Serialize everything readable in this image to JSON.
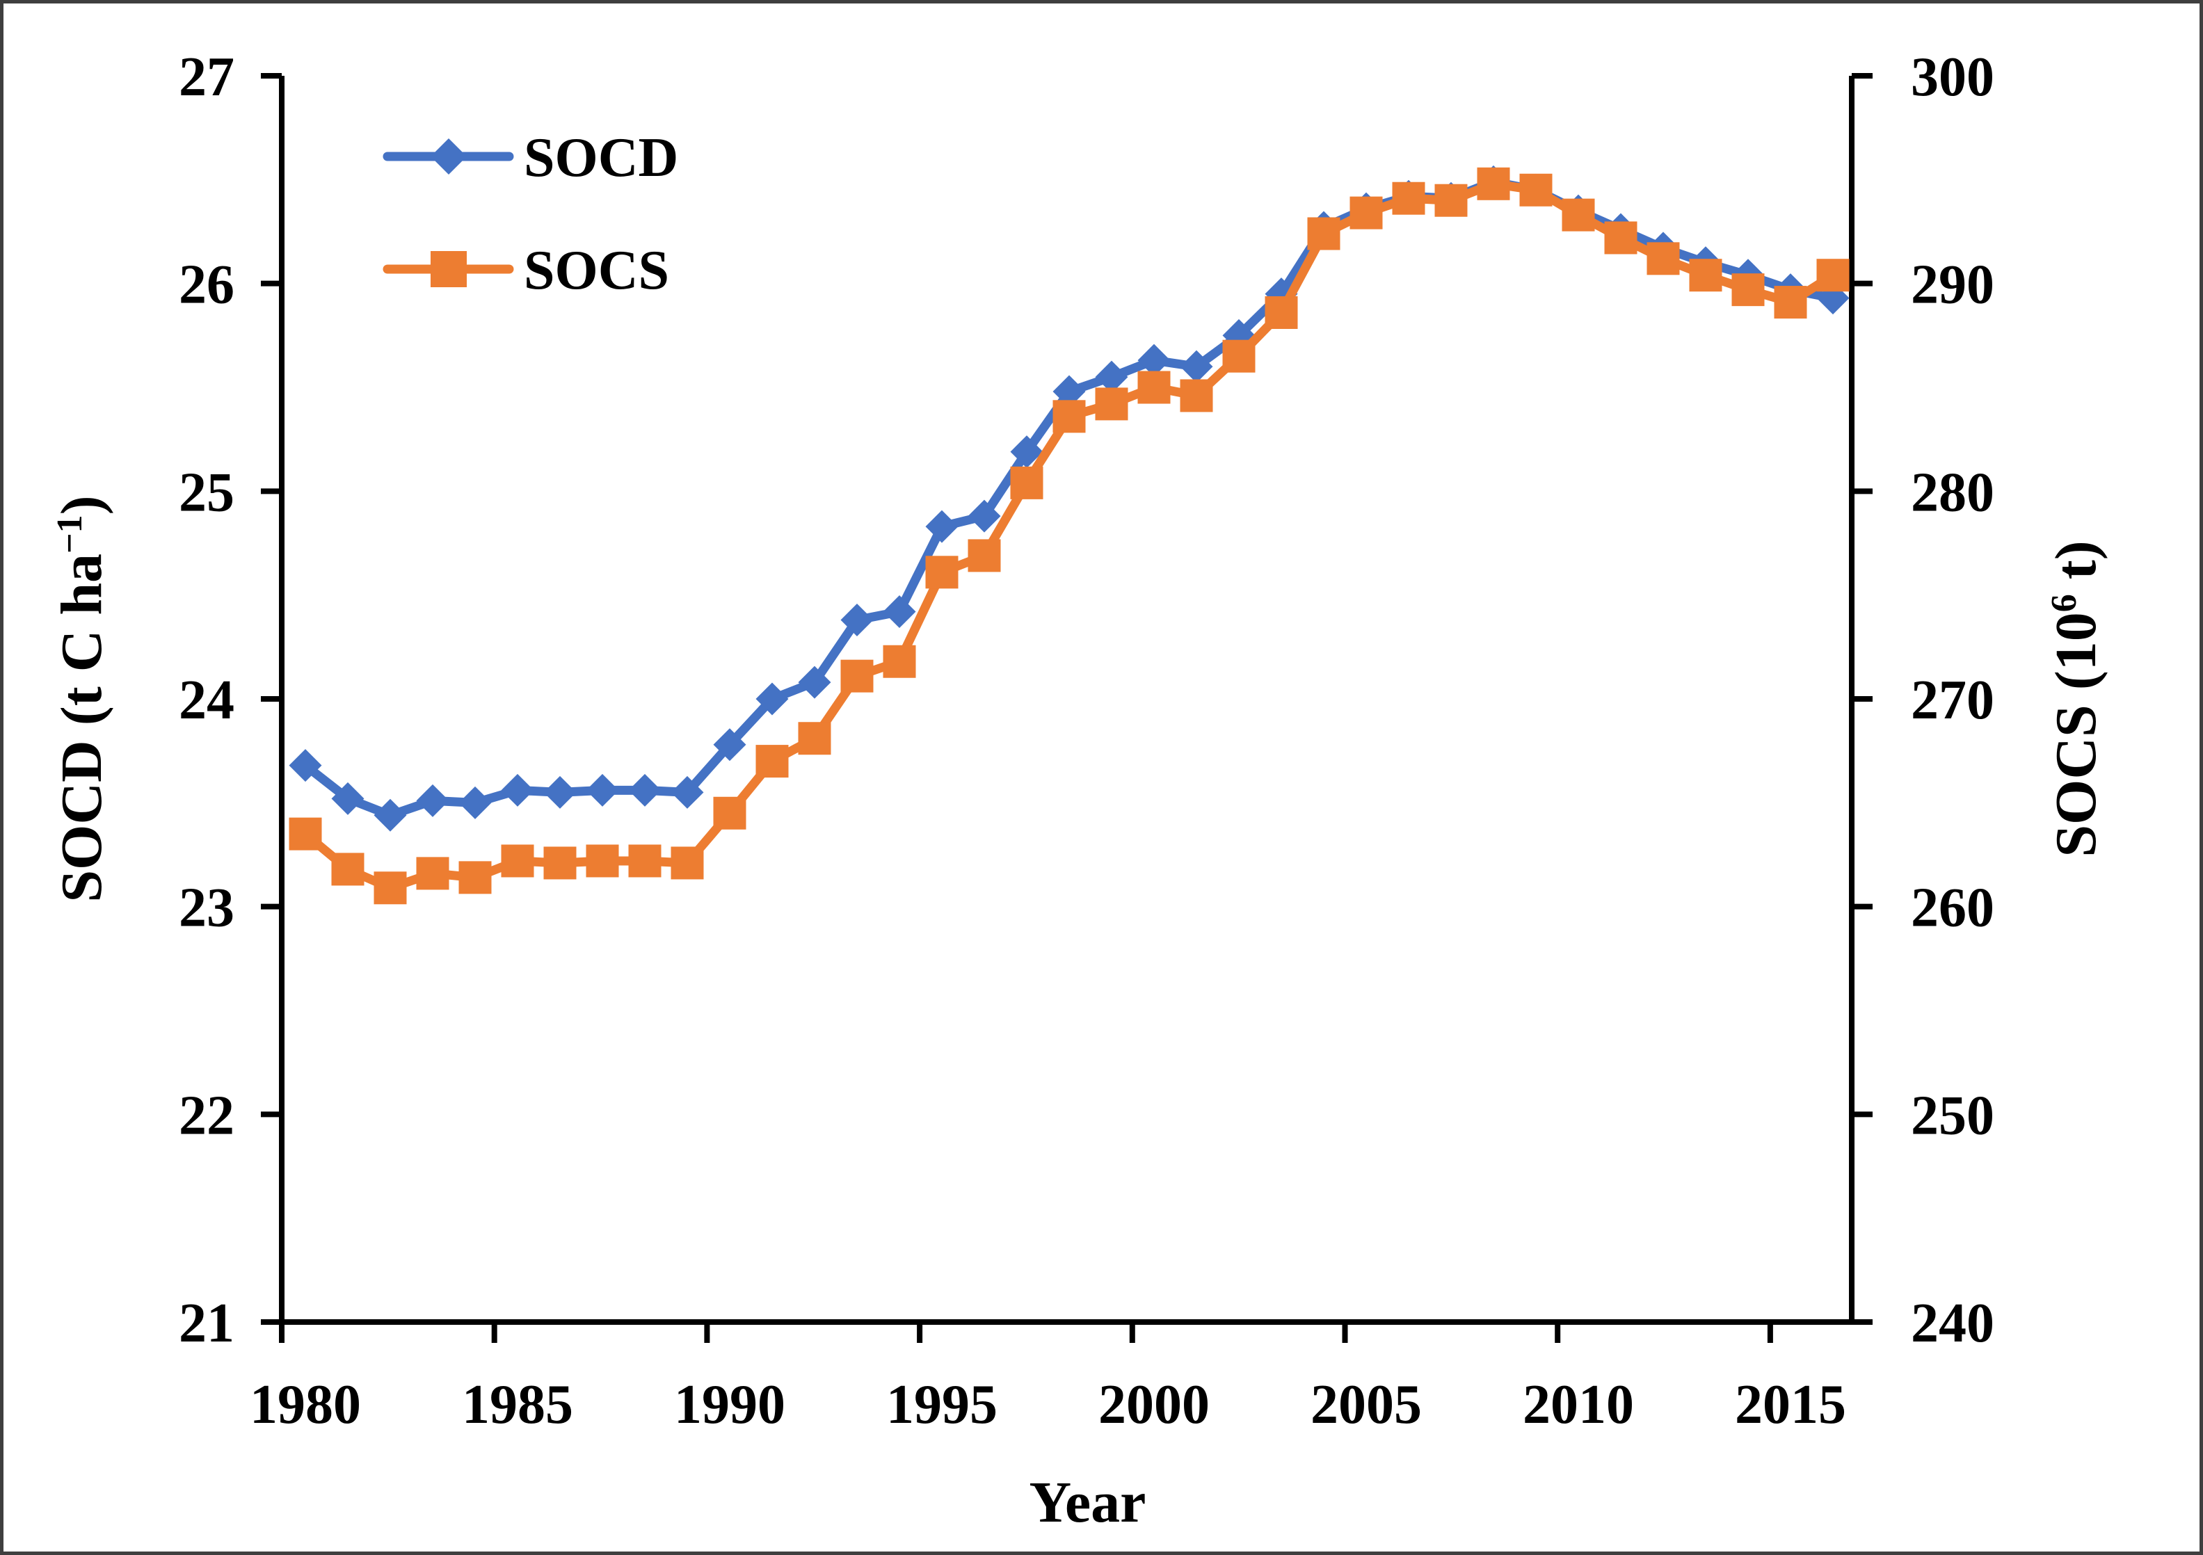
{
  "figure": {
    "background": "#ffffff",
    "border_color": "#3f3f3f"
  },
  "chart_data": {
    "type": "line",
    "title": "",
    "grid": false,
    "legend_position": "top-left-inside",
    "x_label": "Year",
    "x": [
      1980,
      1981,
      1982,
      1983,
      1984,
      1985,
      1986,
      1987,
      1988,
      1989,
      1990,
      1991,
      1992,
      1993,
      1994,
      1995,
      1996,
      1997,
      1998,
      1999,
      2000,
      2001,
      2002,
      2003,
      2004,
      2005,
      2006,
      2007,
      2008,
      2009,
      2010,
      2011,
      2012,
      2013,
      2014,
      2015,
      2016
    ],
    "x_ticks": [
      1980,
      1985,
      1990,
      1995,
      2000,
      2005,
      2010,
      2015
    ],
    "y_left": {
      "label_base": "SOCD (t C ha",
      "label_sup": "−1",
      "label_close": ")",
      "min": 21,
      "max": 27,
      "ticks": [
        27,
        26,
        25,
        24,
        23,
        22,
        21
      ]
    },
    "y_right": {
      "label_base": "SOCS (10",
      "label_sup": "6",
      "label_close": " t)",
      "min": 240,
      "max": 300,
      "ticks": [
        300,
        290,
        280,
        270,
        260,
        250,
        240
      ]
    },
    "series": [
      {
        "name": "SOCD",
        "axis": "left",
        "color": "#4472C4",
        "marker": "diamond",
        "values": [
          23.68,
          23.52,
          23.44,
          23.51,
          23.5,
          23.56,
          23.55,
          23.56,
          23.56,
          23.55,
          23.78,
          24.0,
          24.08,
          24.38,
          24.42,
          24.83,
          24.88,
          25.19,
          25.48,
          25.55,
          25.63,
          25.6,
          25.75,
          25.95,
          26.27,
          26.36,
          26.42,
          26.41,
          26.49,
          26.45,
          26.35,
          26.26,
          26.17,
          26.1,
          26.04,
          25.97,
          25.93
        ]
      },
      {
        "name": "SOCS",
        "axis": "right",
        "color": "#ED7D31",
        "marker": "square",
        "values": [
          263.5,
          261.8,
          260.9,
          261.6,
          261.4,
          262.2,
          262.1,
          262.2,
          262.2,
          262.1,
          264.5,
          267.0,
          268.1,
          271.1,
          271.8,
          276.1,
          276.9,
          280.4,
          283.6,
          284.2,
          285.0,
          284.6,
          286.5,
          288.6,
          292.4,
          293.4,
          294.1,
          294.0,
          294.8,
          294.5,
          293.3,
          292.2,
          291.2,
          290.4,
          289.7,
          289.1,
          290.4
        ]
      }
    ]
  }
}
